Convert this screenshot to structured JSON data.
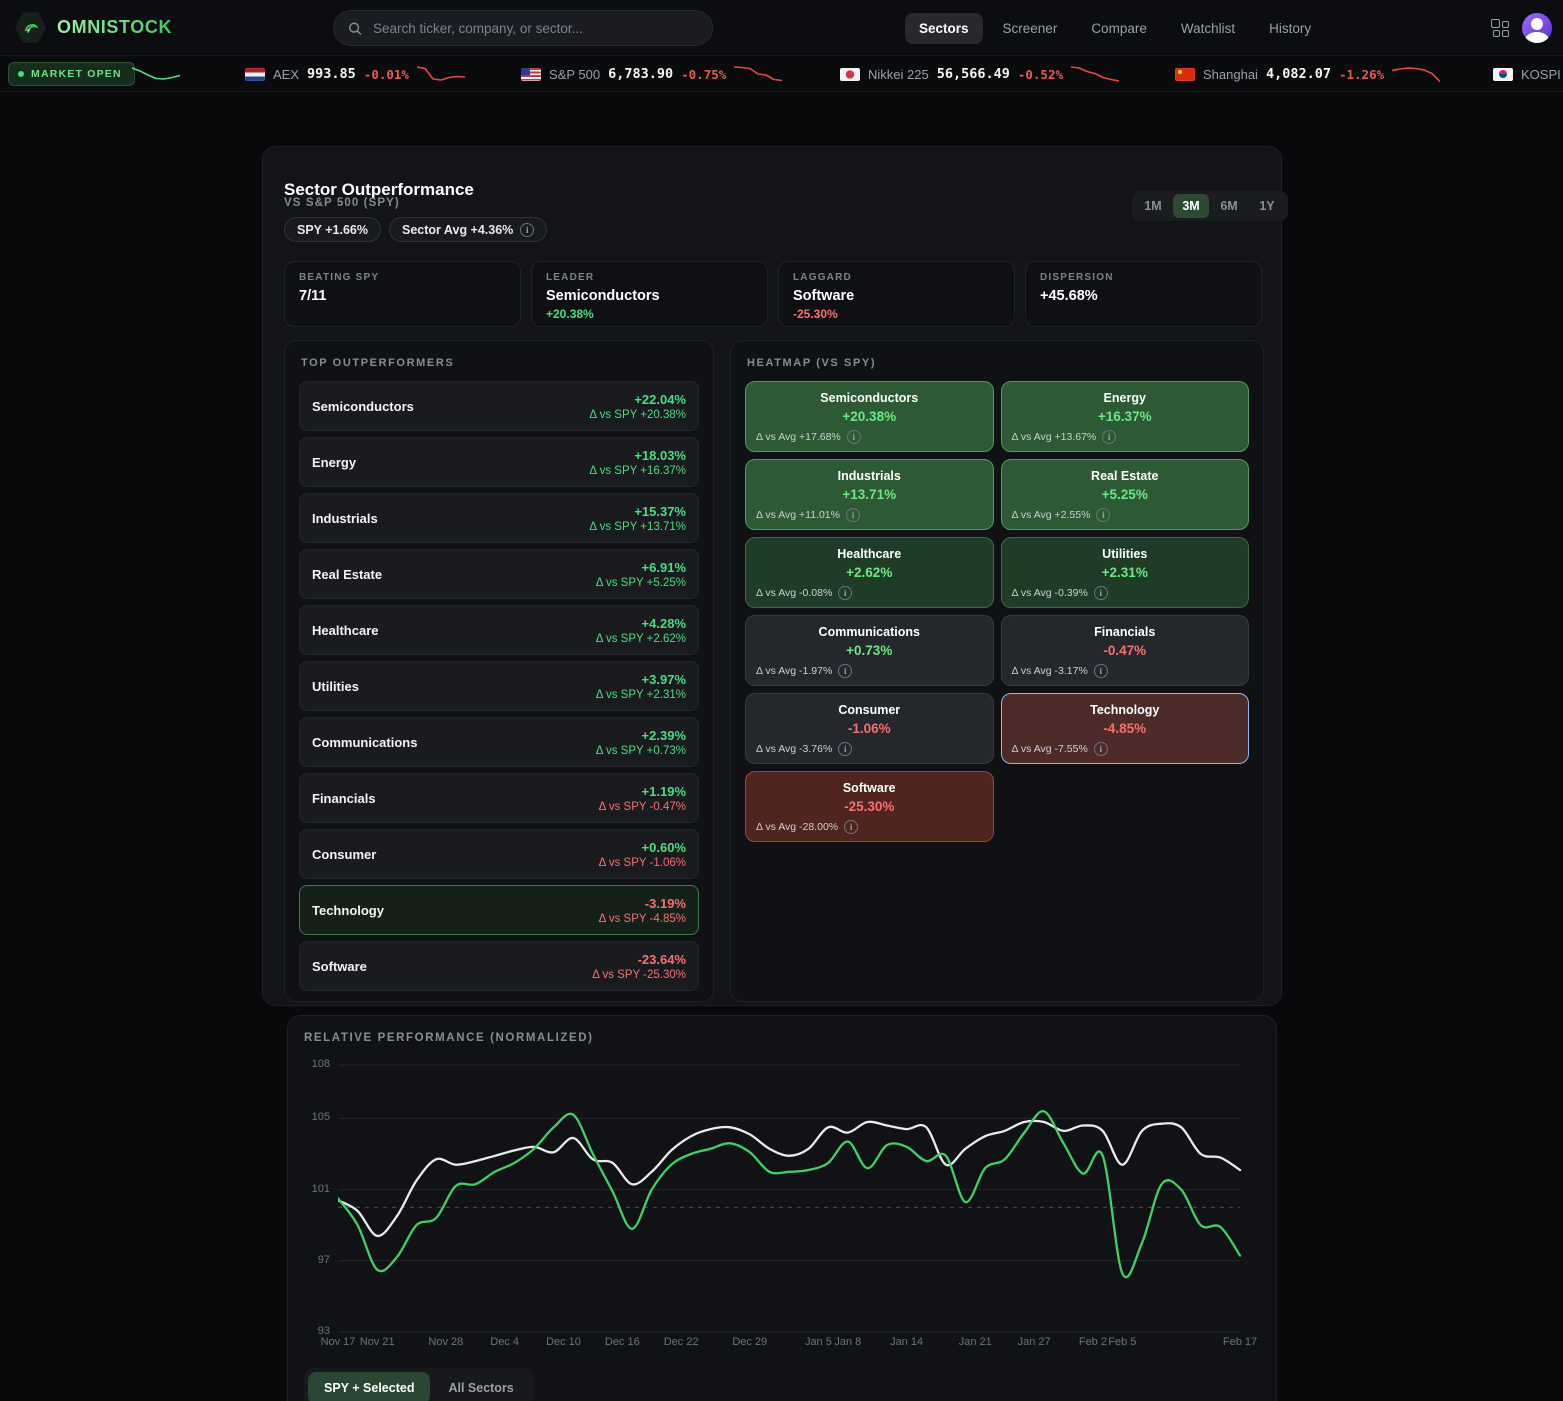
{
  "header": {
    "brand": "OMNISTOCK",
    "search_placeholder": "Search ticker, company, or sector...",
    "nav": [
      {
        "label": "Sectors",
        "active": true
      },
      {
        "label": "Screener",
        "active": false
      },
      {
        "label": "Compare",
        "active": false
      },
      {
        "label": "Watchlist",
        "active": false
      },
      {
        "label": "History",
        "active": false
      }
    ]
  },
  "ticker": {
    "market_status": "MARKET OPEN",
    "lead_spark": [
      4,
      7,
      11,
      14.5,
      15,
      13.5,
      11.5
    ],
    "items": [
      {
        "flag": "nl",
        "label": "AEX",
        "value": "993.85",
        "change": "-0.01%",
        "spark": [
          3,
          4.5,
          15,
          16,
          13.5,
          12.5,
          13
        ]
      },
      {
        "flag": "us",
        "label": "S&P 500",
        "value": "6,783.90",
        "change": "-0.75%",
        "spark": [
          3,
          3.5,
          4.5,
          10,
          11,
          15.5,
          16.5
        ]
      },
      {
        "flag": "jp",
        "label": "Nikkei 225",
        "value": "56,566.49",
        "change": "-0.52%",
        "spark": [
          3,
          4,
          7.5,
          9.5,
          13.5,
          15.5,
          17
        ]
      },
      {
        "flag": "cn",
        "label": "Shanghai",
        "value": "4,082.07",
        "change": "-1.26%",
        "spark": [
          6.5,
          5,
          4,
          4.5,
          6,
          9.5,
          17.5
        ]
      },
      {
        "flag": "kr",
        "label": "KOSPI",
        "value": "",
        "change": "",
        "spark": null
      }
    ]
  },
  "panel": {
    "title": "Sector Outperformance",
    "subtitle": "VS S&P 500 (SPY)",
    "badges": [
      {
        "label": "SPY +1.66%",
        "info": false
      },
      {
        "label": "Sector Avg +4.36%",
        "info": true
      }
    ],
    "ranges": [
      {
        "label": "1M",
        "active": false
      },
      {
        "label": "3M",
        "active": true
      },
      {
        "label": "6M",
        "active": false
      },
      {
        "label": "1Y",
        "active": false
      }
    ],
    "stats": [
      {
        "label": "BEATING SPY",
        "value": "7/11",
        "sub": "",
        "tone": ""
      },
      {
        "label": "LEADER",
        "value": "Semiconductors",
        "sub": "+20.38%",
        "tone": "pos"
      },
      {
        "label": "LAGGARD",
        "value": "Software",
        "sub": "-25.30%",
        "tone": "neg"
      },
      {
        "label": "DISPERSION",
        "value": "+45.68%",
        "sub": "",
        "tone": ""
      }
    ],
    "outperformers": {
      "title": "TOP OUTPERFORMERS",
      "delta_prefix": "Δ vs SPY",
      "rows": [
        {
          "name": "Semiconductors",
          "pct": "+22.04%",
          "delta": "+20.38%",
          "selected": false
        },
        {
          "name": "Energy",
          "pct": "+18.03%",
          "delta": "+16.37%",
          "selected": false
        },
        {
          "name": "Industrials",
          "pct": "+15.37%",
          "delta": "+13.71%",
          "selected": false
        },
        {
          "name": "Real Estate",
          "pct": "+6.91%",
          "delta": "+5.25%",
          "selected": false
        },
        {
          "name": "Healthcare",
          "pct": "+4.28%",
          "delta": "+2.62%",
          "selected": false
        },
        {
          "name": "Utilities",
          "pct": "+3.97%",
          "delta": "+2.31%",
          "selected": false
        },
        {
          "name": "Communications",
          "pct": "+2.39%",
          "delta": "+0.73%",
          "selected": false
        },
        {
          "name": "Financials",
          "pct": "+1.19%",
          "delta": "-0.47%",
          "selected": false
        },
        {
          "name": "Consumer",
          "pct": "+0.60%",
          "delta": "-1.06%",
          "selected": false
        },
        {
          "name": "Technology",
          "pct": "-3.19%",
          "delta": "-4.85%",
          "selected": true
        },
        {
          "name": "Software",
          "pct": "-23.64%",
          "delta": "-25.30%",
          "selected": false
        }
      ]
    },
    "heatmap": {
      "title": "HEATMAP (VS SPY)",
      "delta_prefix": "Δ vs Avg",
      "tiles": [
        {
          "name": "Semiconductors",
          "pct": "+20.38%",
          "delta": "+17.68%",
          "tone": "g2"
        },
        {
          "name": "Energy",
          "pct": "+16.37%",
          "delta": "+13.67%",
          "tone": "g2"
        },
        {
          "name": "Industrials",
          "pct": "+13.71%",
          "delta": "+11.01%",
          "tone": "g2"
        },
        {
          "name": "Real Estate",
          "pct": "+5.25%",
          "delta": "+2.55%",
          "tone": "g2"
        },
        {
          "name": "Healthcare",
          "pct": "+2.62%",
          "delta": "-0.08%",
          "tone": "g1"
        },
        {
          "name": "Utilities",
          "pct": "+2.31%",
          "delta": "-0.39%",
          "tone": "g1"
        },
        {
          "name": "Communications",
          "pct": "+0.73%",
          "delta": "-1.97%",
          "tone": "n"
        },
        {
          "name": "Financials",
          "pct": "-0.47%",
          "delta": "-3.17%",
          "tone": "n"
        },
        {
          "name": "Consumer",
          "pct": "-1.06%",
          "delta": "-3.76%",
          "tone": "n"
        },
        {
          "name": "Technology",
          "pct": "-4.85%",
          "delta": "-7.55%",
          "tone": "rsel"
        },
        {
          "name": "Software",
          "pct": "-25.30%",
          "delta": "-28.00%",
          "tone": "r2"
        }
      ]
    }
  },
  "chart": {
    "title": "RELATIVE PERFORMANCE (NORMALIZED)",
    "modes": [
      {
        "label": "SPY + Selected",
        "active": true
      },
      {
        "label": "All Sectors",
        "active": false
      }
    ]
  },
  "chart_data": {
    "type": "line",
    "title": "RELATIVE PERFORMANCE (NORMALIZED)",
    "ylim": [
      93,
      108
    ],
    "yticks": [
      108,
      105,
      101,
      97,
      93
    ],
    "baseline_dashed": 100,
    "grid": true,
    "date_range": [
      "Nov 17",
      "Feb 17"
    ],
    "day_span": 92,
    "sample_step_days": 2,
    "x_ticks": [
      {
        "label": "Nov 17",
        "day": 0
      },
      {
        "label": "Nov 21",
        "day": 4
      },
      {
        "label": "Nov 28",
        "day": 11
      },
      {
        "label": "Dec 4",
        "day": 17
      },
      {
        "label": "Dec 10",
        "day": 23
      },
      {
        "label": "Dec 16",
        "day": 29
      },
      {
        "label": "Dec 22",
        "day": 35
      },
      {
        "label": "Dec 29",
        "day": 42
      },
      {
        "label": "Jan 5",
        "day": 49
      },
      {
        "label": "Jan 8",
        "day": 52
      },
      {
        "label": "Jan 14",
        "day": 58
      },
      {
        "label": "Jan 21",
        "day": 65
      },
      {
        "label": "Jan 27",
        "day": 71
      },
      {
        "label": "Feb 2",
        "day": 77
      },
      {
        "label": "Feb 5",
        "day": 80
      },
      {
        "label": "Feb 17",
        "day": 92
      }
    ],
    "series": [
      {
        "name": "SPY",
        "color": "#e8eaed",
        "values": [
          100.4,
          99.8,
          98.4,
          99.5,
          101.5,
          102.7,
          102.4,
          102.6,
          102.9,
          103.2,
          103.4,
          103.1,
          103.9,
          102.7,
          102.5,
          101.3,
          102.0,
          103.2,
          104.0,
          104.4,
          104.5,
          104.1,
          103.3,
          102.9,
          103.3,
          104.5,
          104.2,
          104.8,
          104.6,
          104.4,
          104.5,
          102.4,
          103.3,
          104.0,
          104.3,
          104.8,
          104.8,
          104.3,
          104.6,
          104.3,
          102.4,
          104.3,
          104.7,
          104.5,
          103.0,
          102.8,
          102.1
        ]
      },
      {
        "name": "Technology",
        "color": "#3fd163",
        "values": [
          100.5,
          99.0,
          96.5,
          97.2,
          99.0,
          99.4,
          101.2,
          101.3,
          102.0,
          102.5,
          103.3,
          104.5,
          105.2,
          103.0,
          100.9,
          98.8,
          101.0,
          102.4,
          103.0,
          103.3,
          103.6,
          103.1,
          102.0,
          102.0,
          102.1,
          102.5,
          103.7,
          102.2,
          103.5,
          103.4,
          102.6,
          102.9,
          100.3,
          102.2,
          102.7,
          104.2,
          105.4,
          103.6,
          101.9,
          102.9,
          96.3,
          98.0,
          101.3,
          101.0,
          99.0,
          98.9,
          97.3
        ]
      }
    ]
  }
}
